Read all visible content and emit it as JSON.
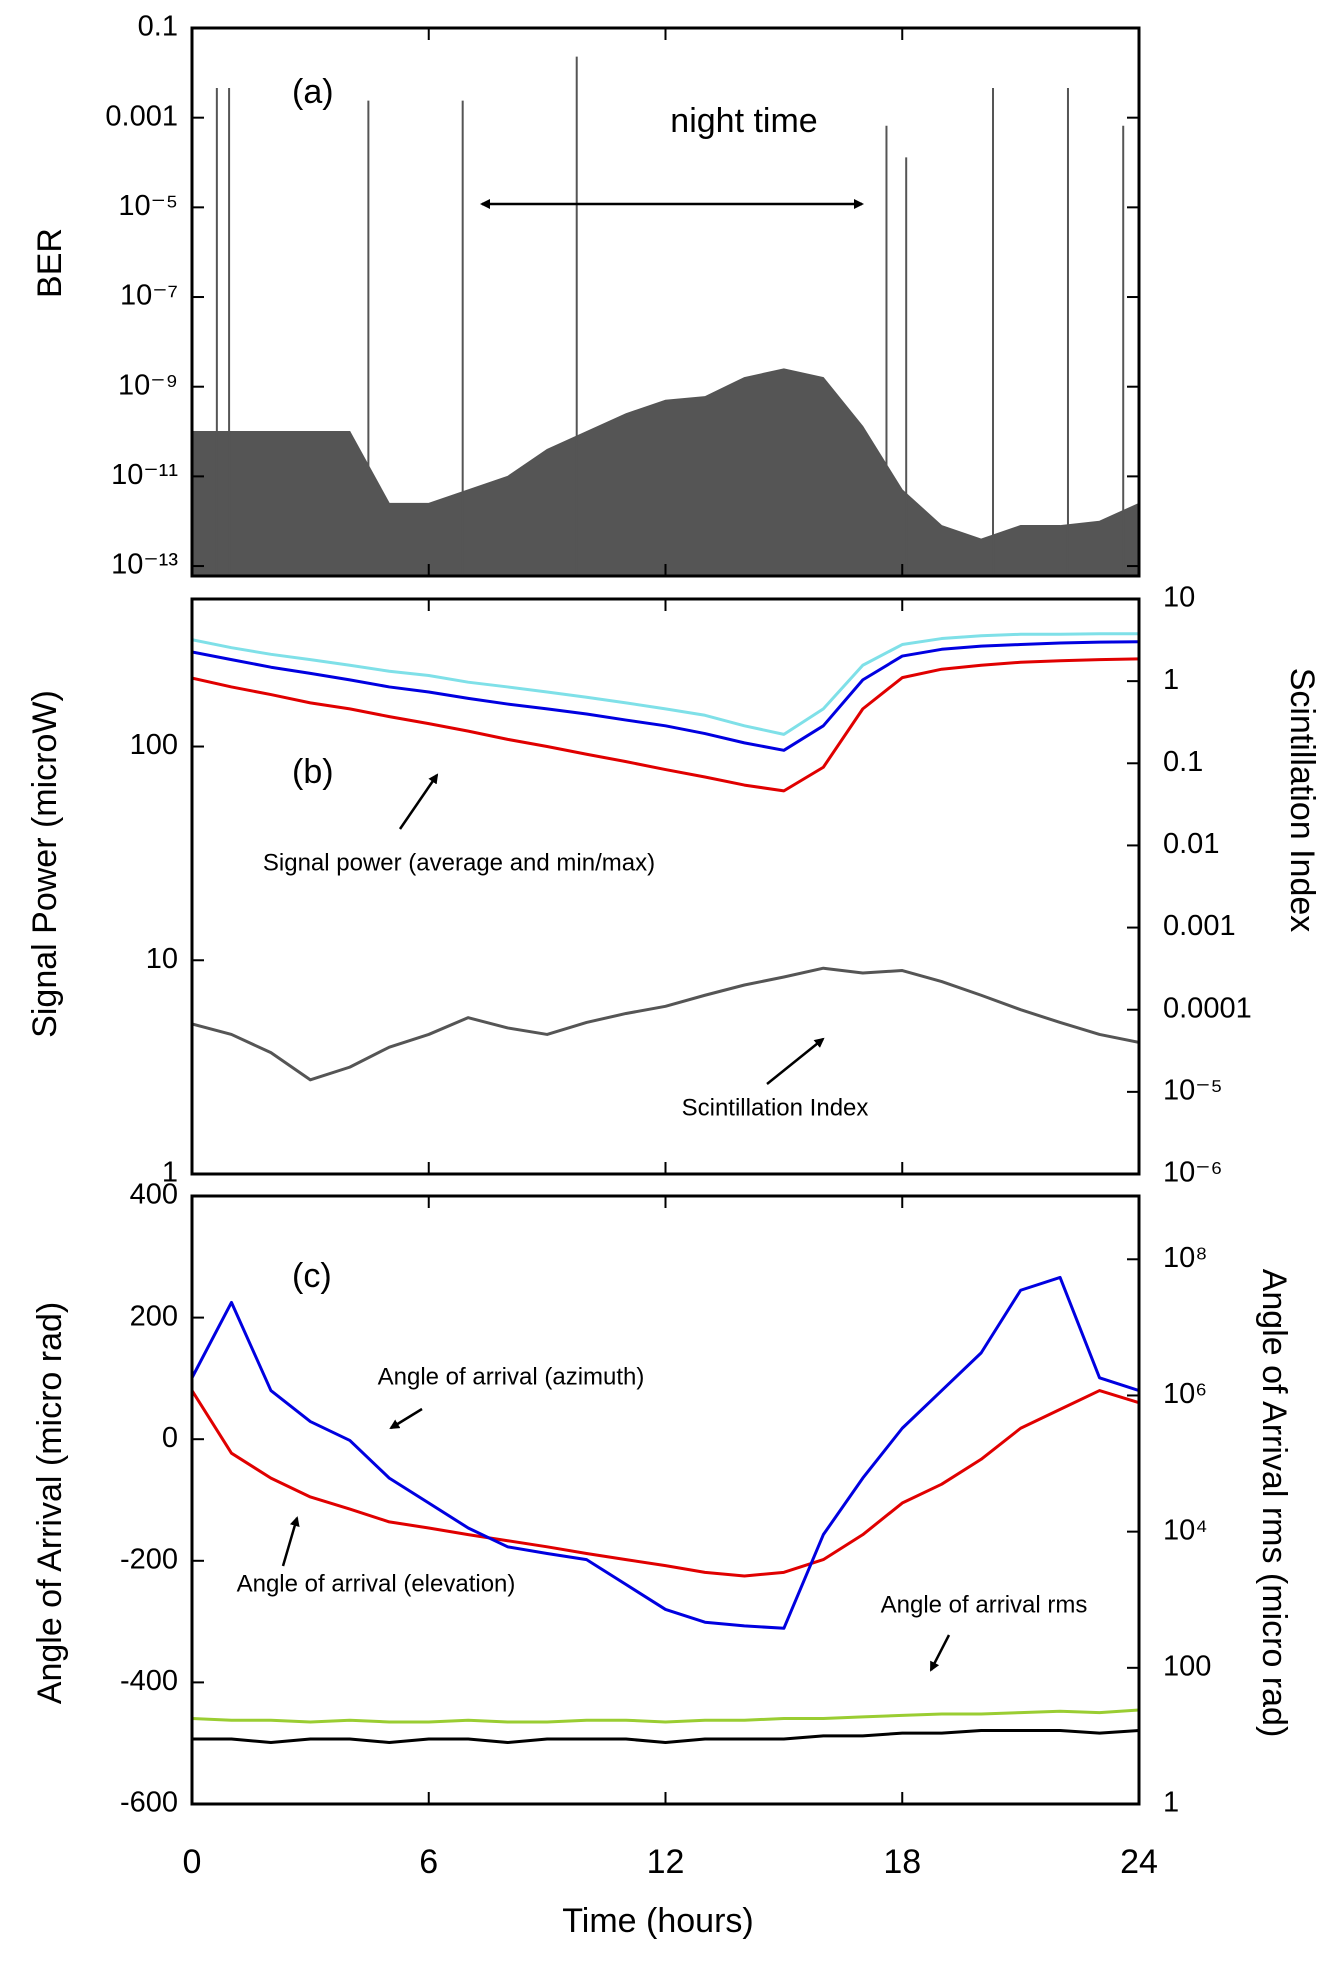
{
  "chart_data": [
    {
      "type": "area",
      "panel_label": "(a)",
      "ylabel": "BER",
      "annotations": [
        "night time"
      ],
      "ylog": true,
      "ylim": [
        6e-14,
        0.1
      ],
      "yticks": [
        0.1,
        0.001,
        {
          "value": 1e-05,
          "label": "10⁻⁵"
        },
        {
          "value": 1e-07,
          "label": "10⁻⁷"
        },
        {
          "value": 1e-09,
          "label": "10⁻⁹"
        },
        {
          "value": 1e-11,
          "label": "10⁻¹¹"
        },
        {
          "value": 1e-13,
          "label": "10⁻¹³"
        }
      ],
      "xlim": [
        0,
        24
      ],
      "xticks": [
        0,
        6,
        12,
        18,
        24
      ],
      "x": [
        0,
        1,
        2,
        3,
        4,
        5,
        6,
        7,
        8,
        9,
        10,
        11,
        12,
        13,
        14,
        15,
        16,
        17,
        18,
        19,
        20,
        21,
        22,
        23,
        24
      ],
      "color": "#555555",
      "values": [
        1e-10,
        1e-10,
        1e-10,
        1e-10,
        1e-10,
        2.5e-12,
        2.5e-12,
        5e-12,
        1e-11,
        4e-11,
        1e-10,
        2.5e-10,
        5e-10,
        6e-10,
        1.6e-09,
        2.5e-09,
        1.6e-09,
        1.3e-10,
        5e-12,
        8e-13,
        4e-13,
        8e-13,
        8e-13,
        1e-12,
        2.5e-12
      ],
      "spikes": {
        "x": [
          0.63,
          0.94,
          4.47,
          6.86,
          9.75,
          17.6,
          18.1,
          20.3,
          22.2,
          23.6
        ],
        "values": [
          0.0046,
          0.0046,
          0.0024,
          0.0024,
          0.023,
          0.00066,
          0.00013,
          0.0046,
          0.0046,
          0.00066
        ]
      }
    },
    {
      "type": "line",
      "panel_label": "(b)",
      "ylabel": "Signal Power (microW)",
      "y2label": "Scintillation Index",
      "annotations": [
        "Signal power (average and min/max)",
        "Scintillation Index"
      ],
      "ylog": true,
      "ylim": [
        1,
        490
      ],
      "yticks": [
        1,
        10,
        100
      ],
      "y2log": true,
      "y2lim": [
        1e-06,
        10
      ],
      "y2ticks": [
        10,
        1,
        0.1,
        0.01,
        0.001,
        0.0001,
        {
          "value": 1e-05,
          "label": "10⁻⁵"
        },
        {
          "value": 1e-06,
          "label": "10⁻⁶"
        }
      ],
      "xlim": [
        0,
        24
      ],
      "xticks": [
        0,
        6,
        12,
        18,
        24
      ],
      "x": [
        0,
        1,
        2,
        3,
        4,
        5,
        6,
        7,
        8,
        9,
        10,
        11,
        12,
        13,
        14,
        15,
        16,
        17,
        18,
        19,
        20,
        21,
        22,
        23,
        24
      ],
      "series": [
        {
          "color": "#7fe0e8",
          "values": [
            316,
            290,
            270,
            255,
            240,
            225,
            215,
            200,
            190,
            180,
            170,
            160,
            150,
            140,
            125,
            114,
            150,
            240,
            300,
            320,
            330,
            335,
            335,
            337,
            337
          ]
        },
        {
          "color": "#e00000",
          "values": [
            209,
            190,
            175,
            160,
            150,
            138,
            128,
            118,
            108,
            100,
            92,
            85,
            78,
            72,
            66,
            62,
            80,
            150,
            210,
            230,
            240,
            248,
            252,
            255,
            257
          ]
        },
        {
          "color": "#0000e0",
          "values": [
            277,
            255,
            235,
            220,
            205,
            190,
            180,
            168,
            158,
            150,
            142,
            133,
            125,
            115,
            104,
            96,
            125,
            205,
            265,
            285,
            295,
            300,
            305,
            308,
            309
          ]
        },
        {
          "color": "#555555",
          "axis": "y2",
          "values": [
            6.7e-05,
            5e-05,
            3e-05,
            1.4e-05,
            2e-05,
            3.5e-05,
            5e-05,
            8e-05,
            6e-05,
            5e-05,
            7e-05,
            9e-05,
            0.00011,
            0.00015,
            0.0002,
            0.00025,
            0.00032,
            0.00028,
            0.0003,
            0.00022,
            0.00015,
            0.0001,
            7e-05,
            5e-05,
            4e-05
          ]
        }
      ]
    },
    {
      "type": "line",
      "panel_label": "(c)",
      "ylabel": "Angle of Arrival (micro rad)",
      "y2label": "Angle of Arrival rms (micro rad)",
      "xlabel": "Time (hours)",
      "annotations": [
        "Angle of arrival (azimuth)",
        "Angle of arrival (elevation)",
        "Angle of arrival rms"
      ],
      "ylim": [
        -600,
        400
      ],
      "yticks": [
        -600,
        -400,
        -200,
        0,
        200,
        400
      ],
      "y2log": true,
      "y2lim": [
        1,
        850000000
      ],
      "y2ticks": [
        1,
        100,
        {
          "value": 10000,
          "label": "10⁴"
        },
        {
          "value": 1000000,
          "label": "10⁶"
        },
        {
          "value": 100000000,
          "label": "10⁸"
        }
      ],
      "xlim": [
        0,
        24
      ],
      "xticks": [
        0,
        6,
        12,
        18,
        24
      ],
      "x": [
        0,
        1,
        2,
        3,
        4,
        5,
        6,
        7,
        8,
        9,
        10,
        11,
        12,
        13,
        14,
        15,
        16,
        17,
        18,
        19,
        20,
        21,
        22,
        23,
        24
      ],
      "series": [
        {
          "color": "#9acd32",
          "axis": "y2",
          "values": [
            18,
            17,
            17,
            16,
            17,
            16,
            16,
            17,
            16,
            16,
            17,
            17,
            16,
            17,
            17,
            18,
            18,
            19,
            20,
            21,
            21,
            22,
            23,
            22,
            24
          ]
        },
        {
          "color": "#000000",
          "axis": "y2",
          "values": [
            9,
            9,
            8,
            9,
            9,
            8,
            9,
            9,
            8,
            9,
            9,
            9,
            8,
            9,
            9,
            9,
            10,
            10,
            11,
            11,
            12,
            12,
            12,
            11,
            12
          ]
        },
        {
          "color": "#e00000",
          "values": [
            80,
            -23,
            -64,
            -95,
            -115,
            -136,
            -146,
            -157,
            -167,
            -177,
            -188,
            -198,
            -208,
            -219,
            -225,
            -219,
            -198,
            -157,
            -105,
            -74,
            -33,
            18,
            49,
            80,
            60
          ]
        },
        {
          "color": "#0000e0",
          "values": [
            101,
            225,
            80,
            29,
            -2,
            -64,
            -105,
            -146,
            -177,
            -188,
            -198,
            -239,
            -280,
            -301,
            -307,
            -311,
            -157,
            -64,
            18,
            80,
            142,
            245,
            266,
            101,
            80
          ]
        }
      ]
    }
  ]
}
